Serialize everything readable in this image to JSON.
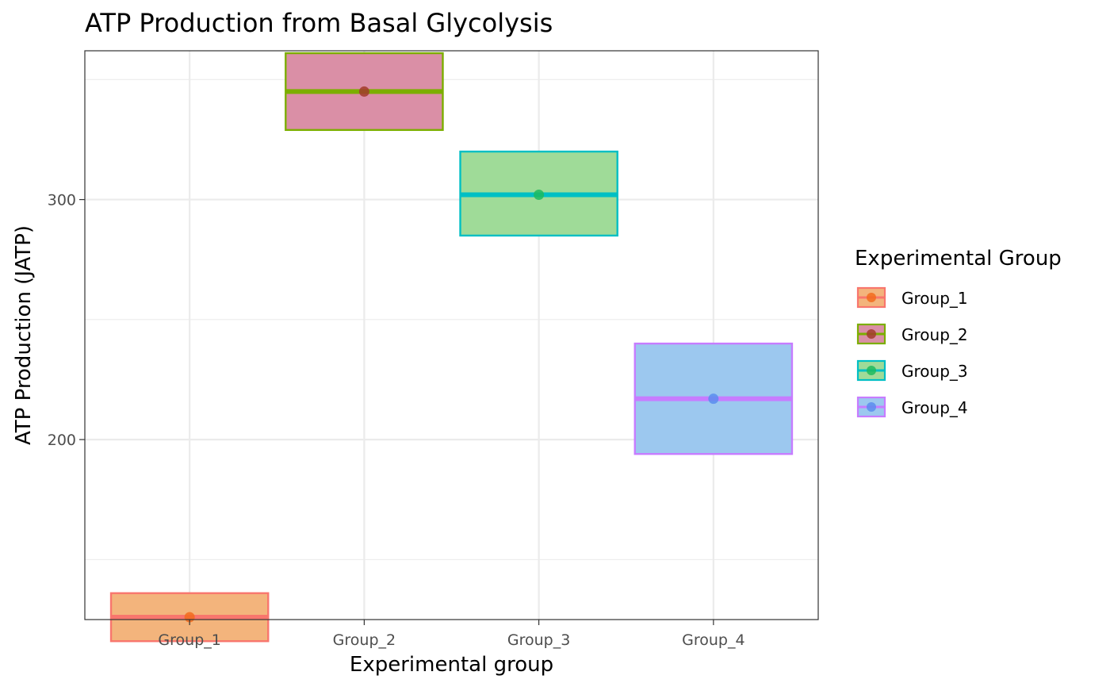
{
  "chart_data": {
    "type": "crossbar",
    "title": "ATP Production from Basal Glycolysis",
    "xlabel": "Experimental group",
    "ylabel": "ATP Production (JATP)",
    "categories": [
      "Group_1",
      "Group_2",
      "Group_3",
      "Group_4"
    ],
    "ylim": [
      125,
      362
    ],
    "yticks": [
      200,
      300
    ],
    "yticks_labeled": [
      "200",
      "300"
    ],
    "grid": true,
    "legend": {
      "title": "Experimental Group",
      "position": "right"
    },
    "series": [
      {
        "name": "Group_1",
        "mean": 126,
        "lower": 116,
        "upper": 136,
        "fill": "#F3B47C",
        "line": "#F8766D",
        "point": "#F26B1D"
      },
      {
        "name": "Group_2",
        "mean": 345,
        "lower": 329,
        "upper": 361,
        "fill": "#DA8FA6",
        "line": "#7CAE00",
        "point": "#A23B2A"
      },
      {
        "name": "Group_3",
        "mean": 302,
        "lower": 285,
        "upper": 320,
        "fill": "#9FDB98",
        "line": "#00BFC4",
        "point": "#1DBA5E"
      },
      {
        "name": "Group_4",
        "mean": 217,
        "lower": 194,
        "upper": 240,
        "fill": "#9CC8EF",
        "line": "#C77CFF",
        "point": "#5B8DEF"
      }
    ]
  }
}
